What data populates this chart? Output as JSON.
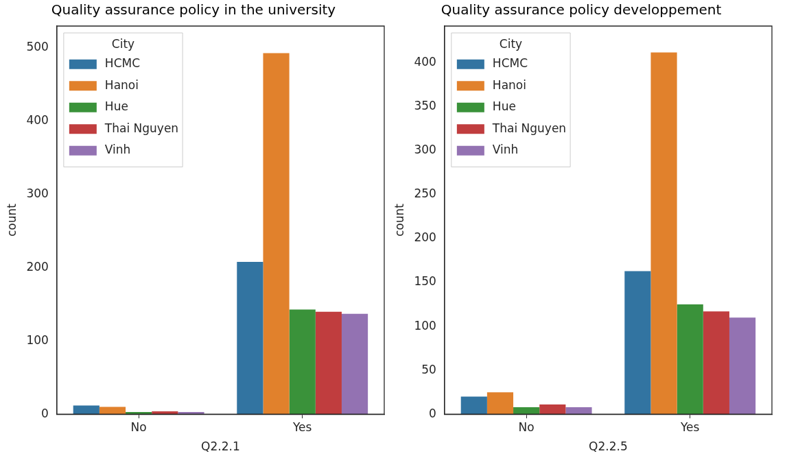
{
  "chart_data": [
    {
      "type": "bar",
      "title": "Quality assurance policy in the university",
      "xlabel": "Q2.2.1",
      "ylabel": "count",
      "legend_title": "City",
      "legend": "top left",
      "grid": false,
      "categories": [
        "No",
        "Yes"
      ],
      "ylim": [
        0,
        530
      ],
      "yticks": [
        0,
        100,
        200,
        300,
        400,
        500
      ],
      "series": [
        {
          "name": "HCMC",
          "color": "#3274a1",
          "values": [
            12,
            208
          ]
        },
        {
          "name": "Hanoi",
          "color": "#e1812c",
          "values": [
            10,
            493
          ]
        },
        {
          "name": "Hue",
          "color": "#3a923a",
          "values": [
            3,
            143
          ]
        },
        {
          "name": "Thai Nguyen",
          "color": "#c03d3e",
          "values": [
            4,
            140
          ]
        },
        {
          "name": "Vinh",
          "color": "#9372b2",
          "values": [
            3,
            137
          ]
        }
      ]
    },
    {
      "type": "bar",
      "title": "Quality assurance policy developpement",
      "xlabel": "Q2.2.5",
      "ylabel": "count",
      "legend_title": "City",
      "legend": "top left",
      "grid": false,
      "categories": [
        "No",
        "Yes"
      ],
      "ylim": [
        0,
        442
      ],
      "yticks": [
        0,
        50,
        100,
        150,
        200,
        250,
        300,
        350,
        400
      ],
      "series": [
        {
          "name": "HCMC",
          "color": "#3274a1",
          "values": [
            20,
            163
          ]
        },
        {
          "name": "Hanoi",
          "color": "#e1812c",
          "values": [
            25,
            412
          ]
        },
        {
          "name": "Hue",
          "color": "#3a923a",
          "values": [
            8,
            125
          ]
        },
        {
          "name": "Thai Nguyen",
          "color": "#c03d3e",
          "values": [
            11,
            117
          ]
        },
        {
          "name": "Vinh",
          "color": "#9372b2",
          "values": [
            8,
            110
          ]
        }
      ]
    }
  ]
}
